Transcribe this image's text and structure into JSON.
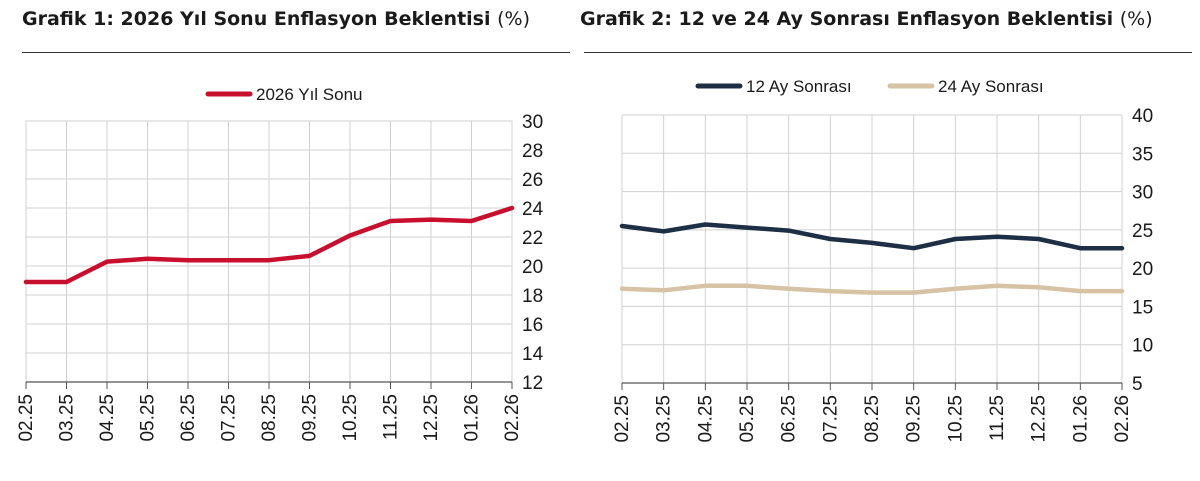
{
  "chart_data": [
    {
      "type": "line",
      "title": "Grafik 1: 2026 Yıl Sonu Enflasyon Beklentisi",
      "unit": "(%)",
      "categories": [
        "02.25",
        "03.25",
        "04.25",
        "05.25",
        "06.25",
        "07.25",
        "08.25",
        "09.25",
        "10.25",
        "11.25",
        "12.25",
        "01.26",
        "02.26"
      ],
      "series": [
        {
          "name": "2026 Yıl Sonu",
          "color": "#c8102e",
          "values": [
            18.9,
            18.9,
            20.3,
            20.5,
            20.4,
            20.4,
            20.4,
            20.7,
            22.1,
            23.1,
            23.2,
            23.1,
            24.0
          ]
        }
      ],
      "ylim": [
        12,
        30
      ],
      "yticks": [
        12,
        14,
        16,
        18,
        20,
        22,
        24,
        26,
        28,
        30
      ],
      "grid": true,
      "legend": "top-center",
      "y_axis_side": "right"
    },
    {
      "type": "line",
      "title": "Grafik 2: 12 ve 24 Ay Sonrası Enflasyon Beklentisi",
      "unit": "(%)",
      "categories": [
        "02.25",
        "03.25",
        "04.25",
        "05.25",
        "06.25",
        "07.25",
        "08.25",
        "09.25",
        "10.25",
        "11.25",
        "12.25",
        "01.26",
        "02.26"
      ],
      "series": [
        {
          "name": "12 Ay Sonrası",
          "color": "#1c2f45",
          "values": [
            25.5,
            24.8,
            25.7,
            25.3,
            24.9,
            23.8,
            23.3,
            22.6,
            23.8,
            24.1,
            23.8,
            22.6,
            22.6
          ]
        },
        {
          "name": "24 Ay Sonrası",
          "color": "#d6c2a4",
          "values": [
            17.3,
            17.1,
            17.7,
            17.7,
            17.3,
            17.0,
            16.8,
            16.8,
            17.3,
            17.7,
            17.5,
            17.0,
            17.0
          ]
        }
      ],
      "ylim": [
        5,
        40
      ],
      "yticks": [
        5,
        10,
        15,
        20,
        25,
        30,
        35,
        40
      ],
      "grid": true,
      "legend": "top-center",
      "y_axis_side": "right"
    }
  ]
}
